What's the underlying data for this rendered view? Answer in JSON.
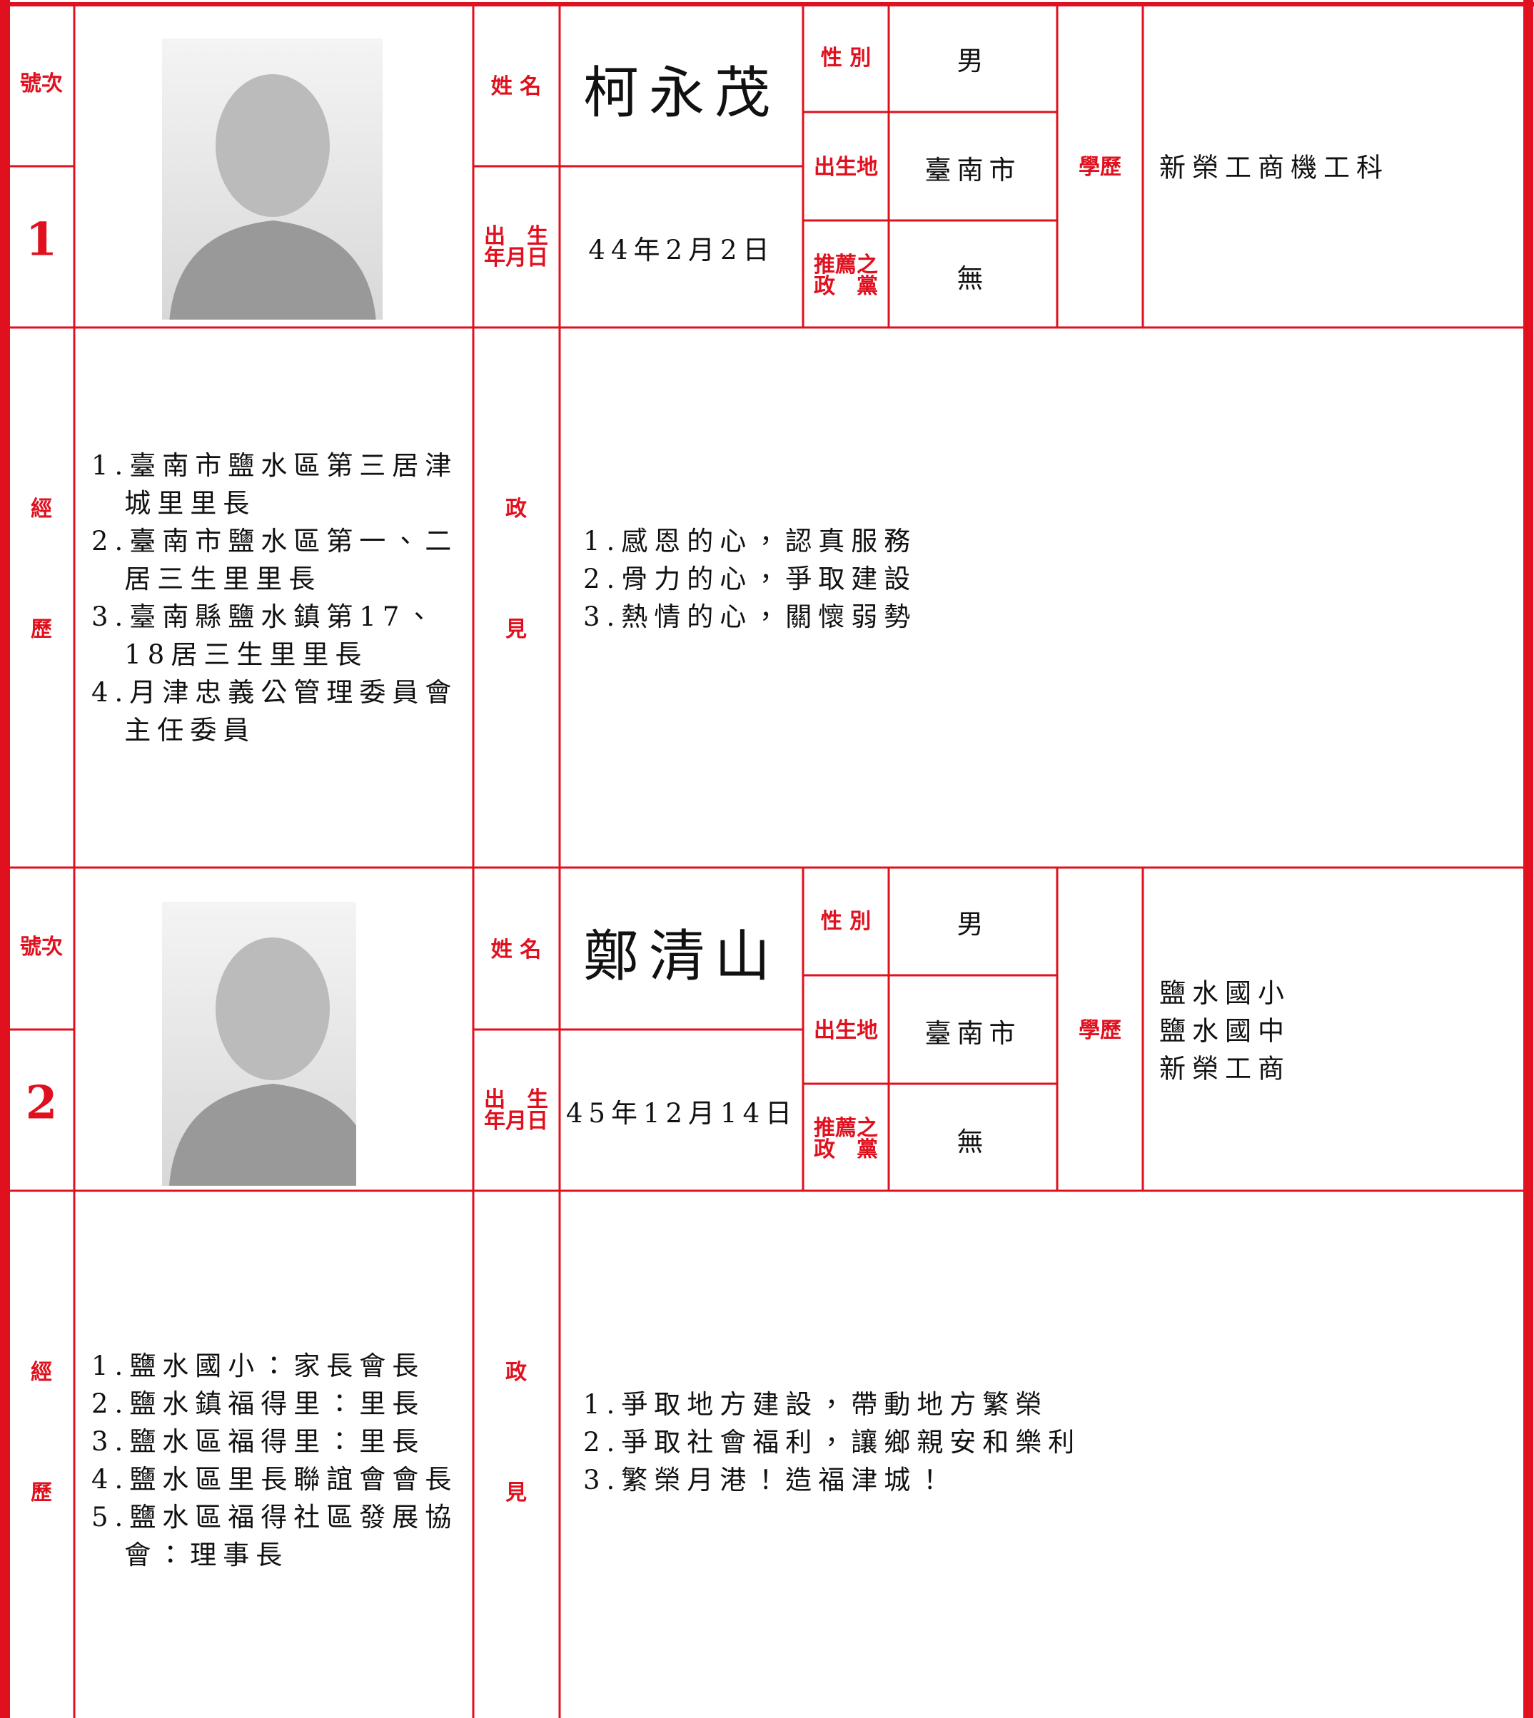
{
  "candidates": [
    {
      "number_label": "號次",
      "number": "1",
      "name_label": "姓 名",
      "name": "柯永茂",
      "gender_label": "性 別",
      "gender": "男",
      "birthplace_label": "出生地",
      "birthplace": "臺南市",
      "party_label": [
        "推薦之",
        "政　黨"
      ],
      "party": "無",
      "education_label": "學歷",
      "education": [
        "新榮工商機工科"
      ],
      "birthdate_label": [
        "出　生",
        "年月日"
      ],
      "birthdate": "44年2月2日",
      "experience_label": [
        "經",
        "歷"
      ],
      "experience": [
        "1.臺南市鹽水區第三居津城里里長",
        "2.臺南市鹽水區第一、二居三生里里長",
        "3.臺南縣鹽水鎮第17、18居三生里里長",
        "4.月津忠義公管理委員會主任委員"
      ],
      "platform_label": [
        "政",
        "見"
      ],
      "platform": [
        "1.感恩的心，認真服務",
        "2.骨力的心，爭取建設",
        "3.熱情的心，關懷弱勢"
      ]
    },
    {
      "number_label": "號次",
      "number": "2",
      "name_label": "姓 名",
      "name": "鄭清山",
      "gender_label": "性 別",
      "gender": "男",
      "birthplace_label": "出生地",
      "birthplace": "臺南市",
      "party_label": [
        "推薦之",
        "政　黨"
      ],
      "party": "無",
      "education_label": "學歷",
      "education": [
        "鹽水國小",
        "鹽水國中",
        "新榮工商"
      ],
      "birthdate_label": [
        "出　生",
        "年月日"
      ],
      "birthdate": "45年12月14日",
      "experience_label": [
        "經",
        "歷"
      ],
      "experience": [
        "1.鹽水國小：家長會長",
        "2.鹽水鎮福得里：里長",
        "3.鹽水區福得里：里長",
        "4.鹽水區里長聯誼會會長",
        "5.鹽水區福得社區發展協會：理事長"
      ],
      "platform_label": [
        "政",
        "見"
      ],
      "platform": [
        "1.爭取地方建設，帶動地方繁榮",
        "2.爭取社會福利，讓鄉親安和樂利",
        "3.繁榮月港！造福津城！"
      ]
    }
  ]
}
